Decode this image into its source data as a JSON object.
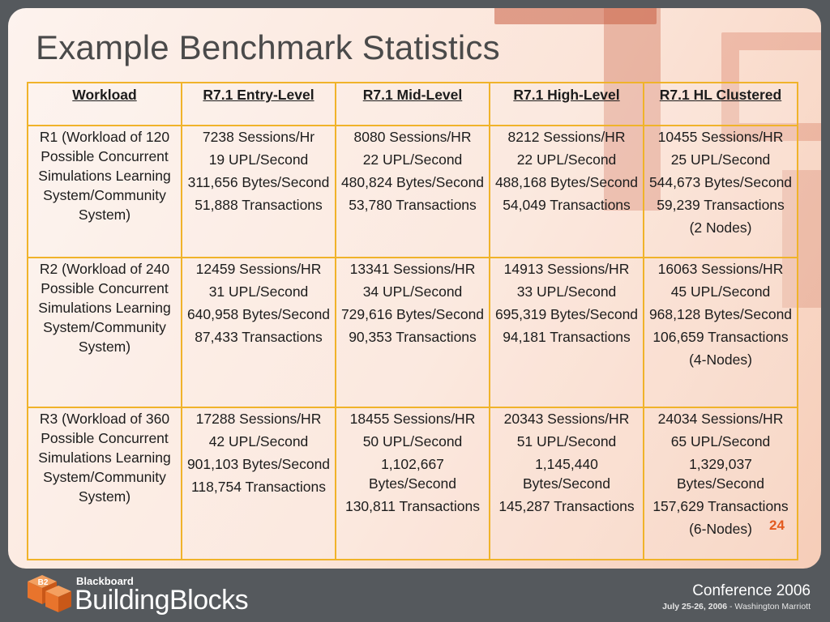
{
  "slide": {
    "title": "Example Benchmark Statistics",
    "page_number": "24"
  },
  "table": {
    "headers": [
      "Workload",
      "R7.1 Entry-Level",
      "R7.1 Mid-Level",
      "R7.1 High-Level",
      "R7.1 HL Clustered"
    ],
    "rows": [
      {
        "workload": "R1 (Workload of 120 Possible Concurrent Simulations Learning System/Community System)",
        "cells": [
          [
            "7238 Sessions/Hr",
            "19 UPL/Second",
            "311,656 Bytes/Second",
            "51,888 Transactions"
          ],
          [
            "8080 Sessions/HR",
            "22 UPL/Second",
            "480,824 Bytes/Second",
            "53,780 Transactions"
          ],
          [
            "8212 Sessions/HR",
            "22 UPL/Second",
            "488,168 Bytes/Second",
            "54,049 Transactions"
          ],
          [
            "10455 Sessions/HR",
            "25 UPL/Second",
            "544,673 Bytes/Second",
            "59,239 Transactions",
            "(2 Nodes)"
          ]
        ]
      },
      {
        "workload": "R2 (Workload of 240 Possible Concurrent Simulations Learning System/Community System)",
        "cells": [
          [
            "12459 Sessions/HR",
            "31 UPL/Second",
            "640,958 Bytes/Second",
            "87,433 Transactions"
          ],
          [
            "13341 Sessions/HR",
            "34 UPL/Second",
            "729,616 Bytes/Second",
            "90,353 Transactions"
          ],
          [
            "14913 Sessions/HR",
            "33 UPL/Second",
            "695,319 Bytes/Second",
            "94,181 Transactions"
          ],
          [
            "16063 Sessions/HR",
            "45 UPL/Second",
            "968,128 Bytes/Second",
            "106,659 Transactions",
            "(4-Nodes)"
          ]
        ]
      },
      {
        "workload": "R3 (Workload of 360 Possible Concurrent Simulations Learning System/Community System)",
        "cells": [
          [
            "17288 Sessions/HR",
            "42 UPL/Second",
            "901,103 Bytes/Second",
            "118,754 Transactions"
          ],
          [
            "18455 Sessions/HR",
            "50 UPL/Second",
            "1,102,667 Bytes/Second",
            "130,811 Transactions"
          ],
          [
            "20343 Sessions/HR",
            "51 UPL/Second",
            "1,145,440 Bytes/Second",
            "145,287 Transactions"
          ],
          [
            "24034 Sessions/HR",
            "65 UPL/Second",
            "1,329,037 Bytes/Second",
            "157,629 Transactions",
            "(6-Nodes)"
          ]
        ]
      }
    ]
  },
  "footer": {
    "logo_top": "Blackboard",
    "logo_main": "BuildingBlocks",
    "logo_badge": "B2",
    "conference_word": "Conference",
    "conference_year": "2006",
    "dates": "July 25-26, 2006",
    "venue": "- Washington Marriott"
  },
  "colors": {
    "background": "#55595d",
    "table_border": "#f0b32a",
    "accent": "#e35a1f",
    "logo_orange": "#e8742c"
  }
}
